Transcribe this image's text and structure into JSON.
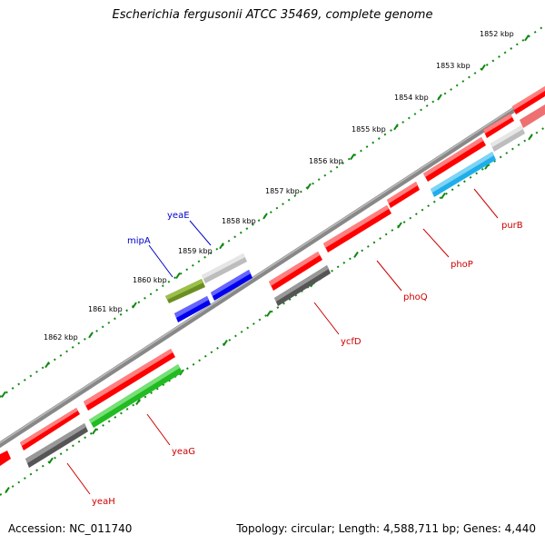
{
  "title": "Escherichia fergusonii ATCC 35469, complete genome",
  "footer": {
    "accession": "Accession: NC_011740",
    "summary": "Topology: circular; Length: 4,588,711 bp; Genes: 4,440"
  },
  "ruler_labels": [
    "1852 kbp",
    "1853 kbp",
    "1854 kbp",
    "1855 kbp",
    "1856 kbp",
    "1857 kbp",
    "1858 kbp",
    "1859 kbp",
    "1860 kbp",
    "1861 kbp",
    "1862 kbp"
  ],
  "gene_labels": {
    "yeaE": "yeaE",
    "mipA": "mipA",
    "purB": "purB",
    "phoP": "phoP",
    "phoQ": "phoQ",
    "ycfD": "ycfD",
    "yeaG": "yeaG",
    "yeaH": "yeaH"
  },
  "colors": {
    "forward_label": "#0000cc",
    "reverse_label": "#cc0000",
    "red": "#ff0000",
    "grey": "#666666",
    "light_grey": "#c8c8c8",
    "blue": "#0000ee",
    "olive": "#6b8e23",
    "green": "#33cc33",
    "cyan": "#22bbee",
    "pink": "#ee6666",
    "backbone": "#888888",
    "ruler": "#118811"
  }
}
